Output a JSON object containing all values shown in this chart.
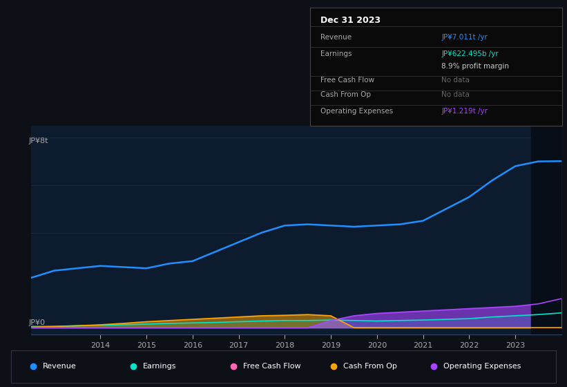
{
  "bg_color": "#0d1117",
  "plot_bg_color": "#0d1b2e",
  "title": "Dec 31 2023",
  "y_label_top": "JP¥8t",
  "y_label_bottom": "JP¥0",
  "x_ticks": [
    2014,
    2015,
    2016,
    2017,
    2018,
    2019,
    2020,
    2021,
    2022,
    2023
  ],
  "years": [
    2012.5,
    2013,
    2013.5,
    2014,
    2014.5,
    2015,
    2015.5,
    2016,
    2016.5,
    2017,
    2017.5,
    2018,
    2018.5,
    2019,
    2019.5,
    2020,
    2020.5,
    2021,
    2021.5,
    2022,
    2022.5,
    2023,
    2023.5,
    2024
  ],
  "revenue": [
    2.1,
    2.4,
    2.5,
    2.6,
    2.55,
    2.5,
    2.7,
    2.8,
    3.2,
    3.6,
    4.0,
    4.3,
    4.35,
    4.3,
    4.25,
    4.3,
    4.35,
    4.5,
    5.0,
    5.5,
    6.2,
    6.8,
    7.0,
    7.01
  ],
  "earnings": [
    0.05,
    0.05,
    0.08,
    0.1,
    0.12,
    0.15,
    0.18,
    0.2,
    0.22,
    0.25,
    0.28,
    0.3,
    0.3,
    0.32,
    0.3,
    0.28,
    0.3,
    0.32,
    0.35,
    0.38,
    0.45,
    0.5,
    0.55,
    0.62
  ],
  "cash_from_op": [
    0.02,
    0.05,
    0.08,
    0.12,
    0.18,
    0.25,
    0.3,
    0.35,
    0.4,
    0.45,
    0.5,
    0.52,
    0.55,
    0.5,
    0.0,
    0.0,
    0.0,
    0.0,
    0.0,
    0.0,
    0.0,
    0.0,
    0.0,
    0.0
  ],
  "operating_expenses": [
    0.0,
    0.0,
    0.0,
    0.0,
    0.0,
    0.0,
    0.0,
    0.0,
    0.0,
    0.0,
    0.0,
    0.0,
    0.0,
    0.3,
    0.5,
    0.6,
    0.65,
    0.7,
    0.75,
    0.8,
    0.85,
    0.9,
    1.0,
    1.22
  ],
  "revenue_color": "#1e90ff",
  "earnings_color": "#00e5cc",
  "free_cash_flow_color": "#ff69b4",
  "cash_from_op_color": "#ffa500",
  "operating_expenses_color": "#aa44ff",
  "legend_items": [
    {
      "label": "Revenue",
      "color": "#1e90ff"
    },
    {
      "label": "Earnings",
      "color": "#00e5cc"
    },
    {
      "label": "Free Cash Flow",
      "color": "#ff69b4"
    },
    {
      "label": "Cash From Op",
      "color": "#ffa500"
    },
    {
      "label": "Operating Expenses",
      "color": "#aa44ff"
    }
  ],
  "info_rows": [
    {
      "label": "Revenue",
      "value": "JP¥7.011t /yr",
      "value_color": "#1e90ff",
      "divider_after": true
    },
    {
      "label": "Earnings",
      "value": "JP¥622.495b /yr",
      "value_color": "#00e5cc",
      "divider_after": false
    },
    {
      "label": "",
      "value": "8.9% profit margin",
      "value_color": "#cccccc",
      "divider_after": true
    },
    {
      "label": "Free Cash Flow",
      "value": "No data",
      "value_color": "#666666",
      "divider_after": true
    },
    {
      "label": "Cash From Op",
      "value": "No data",
      "value_color": "#666666",
      "divider_after": true
    },
    {
      "label": "Operating Expenses",
      "value": "JP¥1.219t /yr",
      "value_color": "#aa44ff",
      "divider_after": false
    }
  ]
}
